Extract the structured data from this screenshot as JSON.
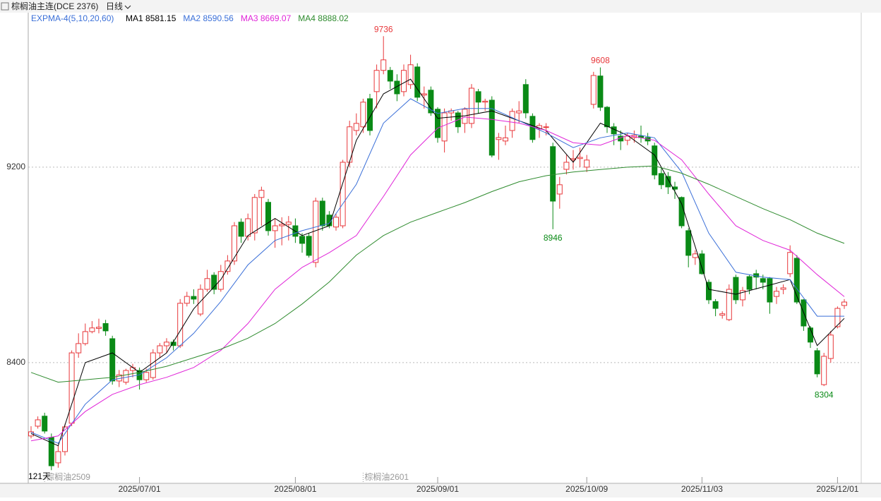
{
  "chart_data": {
    "type": "candlestick",
    "title": "棕榈油主连(DCE 2376)",
    "period": "日线",
    "indicator": "EXPMA-4(5,10,20,60)",
    "count_label": "121天",
    "up_color": "#e8373a",
    "down_color": "#0a8a16",
    "ylim": [
      7906,
      9832
    ],
    "yticks": [
      8400,
      9200
    ],
    "grid": true,
    "xticks": [
      {
        "value": 16,
        "label": "2025/07/01"
      },
      {
        "value": 39,
        "label": "2025/08/01"
      },
      {
        "value": 60,
        "label": "2025/09/01"
      },
      {
        "value": 82,
        "label": "2025/10/09"
      },
      {
        "value": 99,
        "label": "2025/11/03"
      },
      {
        "value": 119,
        "label": "2025/12/01"
      }
    ],
    "contracts": [
      {
        "value": 2,
        "label": "棕榈油2509"
      },
      {
        "value": 49,
        "label": "棕榈油2601"
      }
    ],
    "annotations": [
      {
        "index": 52,
        "field": "high"
      },
      {
        "index": 84,
        "field": "high"
      },
      {
        "index": 77,
        "field": "low"
      },
      {
        "index": 117,
        "field": "low"
      }
    ],
    "open": [
      8100,
      8140,
      8181,
      8094,
      7990,
      8036,
      8152,
      8440,
      8478,
      8527,
      8540,
      8560,
      8498,
      8325,
      8320,
      8368,
      8368,
      8330,
      8339,
      8440,
      8469,
      8484,
      8469,
      8643,
      8671,
      8599,
      8700,
      8758,
      8700,
      8773,
      8816,
      8975,
      8917,
      8931,
      9076,
      9056,
      8940,
      8960,
      8966,
      8960,
      8917,
      8917,
      8810,
      9061,
      9004,
      8955,
      8960,
      9220,
      9350,
      9365,
      9480,
      9509,
      9596,
      9596,
      9552,
      9509,
      9538,
      9610,
      9495,
      9515,
      9437,
      9307,
      9422,
      9422,
      9379,
      9379,
      9509,
      9466,
      9474,
      9313,
      9307,
      9350,
      9422,
      9538,
      9408,
      9356,
      9365,
      9284,
      9090,
      9191,
      9230,
      9235,
      9200,
      9457,
      9573,
      9445,
      9365,
      9327,
      9310,
      9321,
      9327,
      9321,
      9287,
      9174,
      9162,
      9119,
      9076,
      8940,
      8830,
      8845,
      8729,
      8650,
      8594,
      8576,
      8749,
      8657,
      8752,
      8764,
      8744,
      8744,
      8671,
      8700,
      8764,
      8827,
      8657,
      8542,
      8449,
      8310,
      8417,
      8547,
      8634
    ],
    "high": [
      8140,
      8180,
      8195,
      8110,
      8060,
      8150,
      8450,
      8520,
      8560,
      8570,
      8580,
      8575,
      8510,
      8370,
      8375,
      8395,
      8380,
      8375,
      8455,
      8480,
      8500,
      8495,
      8660,
      8690,
      8700,
      8720,
      8780,
      8770,
      8800,
      8840,
      8975,
      8990,
      9010,
      9090,
      9120,
      9070,
      8990,
      8995,
      9000,
      8990,
      8930,
      8930,
      9075,
      9075,
      9020,
      9010,
      9230,
      9390,
      9420,
      9480,
      9500,
      9620,
      9736,
      9610,
      9580,
      9620,
      9660,
      9625,
      9530,
      9530,
      9445,
      9440,
      9440,
      9430,
      9445,
      9540,
      9520,
      9480,
      9490,
      9340,
      9370,
      9440,
      9470,
      9560,
      9420,
      9380,
      9380,
      9300,
      9160,
      9250,
      9270,
      9280,
      9250,
      9590,
      9608,
      9450,
      9380,
      9350,
      9340,
      9350,
      9370,
      9340,
      9300,
      9200,
      9180,
      9140,
      9080,
      8950,
      8860,
      8860,
      8740,
      8660,
      8610,
      8720,
      8760,
      8710,
      8760,
      8780,
      8760,
      8750,
      8710,
      8720,
      8880,
      8840,
      8660,
      8550,
      8460,
      8440,
      8530,
      8630,
      8660
    ],
    "low": [
      8090,
      8130,
      8110,
      7960,
      7970,
      8020,
      8140,
      8420,
      8470,
      8520,
      8520,
      8510,
      8310,
      8300,
      8310,
      8340,
      8290,
      8320,
      8330,
      8420,
      8440,
      8450,
      8460,
      8630,
      8640,
      8590,
      8690,
      8680,
      8690,
      8760,
      8800,
      8890,
      8900,
      8900,
      8960,
      8920,
      8870,
      8880,
      8900,
      8890,
      8850,
      8830,
      8790,
      8940,
      8950,
      8940,
      8950,
      9200,
      9330,
      9340,
      9330,
      9440,
      9580,
      9520,
      9470,
      9490,
      9520,
      9470,
      9440,
      9410,
      9300,
      9260,
      9390,
      9340,
      9340,
      9360,
      9420,
      9430,
      9240,
      9230,
      9290,
      9320,
      9380,
      9400,
      9300,
      9320,
      9330,
      8946,
      9030,
      9170,
      9190,
      9200,
      9180,
      9440,
      9430,
      9340,
      9290,
      9270,
      9290,
      9300,
      9300,
      9290,
      9150,
      9110,
      9090,
      9070,
      8950,
      8790,
      8800,
      8760,
      8640,
      8590,
      8580,
      8570,
      8640,
      8630,
      8680,
      8700,
      8700,
      8600,
      8640,
      8680,
      8750,
      8640,
      8530,
      8460,
      8340,
      8304,
      8400,
      8540,
      8620
    ],
    "close": [
      8117,
      8166,
      8120,
      7978,
      8036,
      8137,
      8440,
      8478,
      8527,
      8542,
      8545,
      8530,
      8325,
      8350,
      8368,
      8380,
      8330,
      8360,
      8440,
      8469,
      8484,
      8470,
      8643,
      8671,
      8660,
      8700,
      8744,
      8700,
      8773,
      8816,
      8960,
      8917,
      8989,
      9076,
      9105,
      8940,
      8960,
      8966,
      8975,
      8917,
      8888,
      8839,
      9061,
      8960,
      8960,
      8995,
      9220,
      9365,
      9379,
      9466,
      9350,
      9596,
      9639,
      9552,
      9500,
      9596,
      9619,
      9486,
      9500,
      9422,
      9321,
      9422,
      9430,
      9365,
      9437,
      9523,
      9466,
      9470,
      9249,
      9321,
      9320,
      9428,
      9430,
      9422,
      9313,
      9370,
      9365,
      9061,
      9128,
      9220,
      9235,
      9240,
      9229,
      9575,
      9445,
      9365,
      9336,
      9307,
      9327,
      9330,
      9321,
      9307,
      9168,
      9128,
      9119,
      9110,
      8960,
      8839,
      8845,
      8764,
      8657,
      8622,
      8600,
      8700,
      8657,
      8695,
      8700,
      8750,
      8729,
      8648,
      8692,
      8706,
      8851,
      8648,
      8550,
      8484,
      8354,
      8426,
      8513,
      8622,
      8648
    ],
    "ma_x": [
      0,
      4,
      8,
      12,
      16,
      20,
      24,
      28,
      32,
      36,
      40,
      44,
      48,
      52,
      56,
      60,
      64,
      68,
      72,
      76,
      80,
      84,
      88,
      92,
      96,
      100,
      104,
      108,
      112,
      116,
      120
    ],
    "series": [
      {
        "name": "MA1",
        "latest": 8581.15,
        "color": "#000000",
        "values": [
          8110,
          8060,
          8400,
          8440,
          8360,
          8440,
          8620,
          8740,
          8920,
          8990,
          8920,
          8960,
          9310,
          9500,
          9560,
          9400,
          9410,
          9430,
          9390,
          9350,
          9220,
          9380,
          9330,
          9250,
          9050,
          8700,
          8680,
          8710,
          8740,
          8470,
          8581
        ]
      },
      {
        "name": "MA2",
        "latest": 8590.56,
        "color": "#3a6fd8",
        "values": [
          8115,
          8070,
          8230,
          8330,
          8350,
          8420,
          8520,
          8650,
          8800,
          8900,
          8940,
          8970,
          9130,
          9380,
          9480,
          9420,
          9440,
          9440,
          9390,
          9340,
          9280,
          9320,
          9340,
          9320,
          9180,
          8930,
          8770,
          8750,
          8740,
          8590,
          8590
        ]
      },
      {
        "name": "MA3",
        "latest": 8669.07,
        "color": "#e025d8",
        "values": [
          8080,
          8100,
          8200,
          8270,
          8310,
          8340,
          8380,
          8450,
          8560,
          8700,
          8790,
          8850,
          8920,
          9080,
          9250,
          9360,
          9405,
          9395,
          9380,
          9350,
          9300,
          9290,
          9330,
          9310,
          9230,
          9090,
          8960,
          8900,
          8860,
          8760,
          8670
        ]
      },
      {
        "name": "MA4",
        "latest": 8888.02,
        "color": "#2e8b2e",
        "values": [
          8360,
          8320,
          8330,
          8340,
          8360,
          8385,
          8420,
          8455,
          8500,
          8560,
          8640,
          8730,
          8840,
          8920,
          8975,
          9015,
          9055,
          9100,
          9140,
          9165,
          9180,
          9190,
          9200,
          9205,
          9175,
          9130,
          9080,
          9030,
          8985,
          8930,
          8888
        ]
      }
    ]
  }
}
